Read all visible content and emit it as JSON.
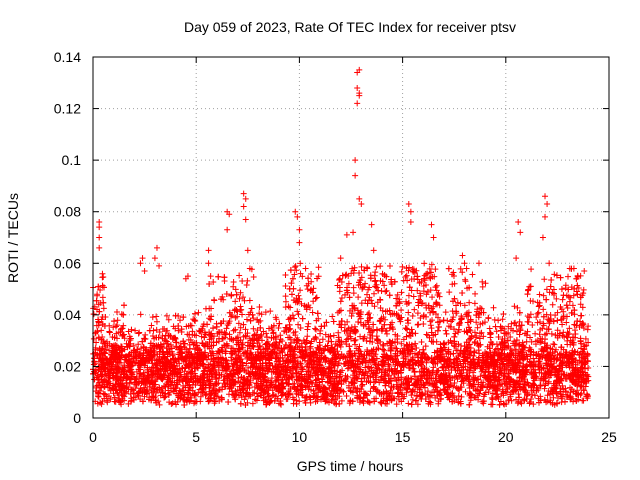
{
  "chart_data": {
    "type": "scatter",
    "title": "Day 059 of 2023, Rate Of TEC Index for receiver ptsv",
    "xlabel": "GPS time / hours",
    "ylabel": "ROTI / TECUs",
    "xlim": [
      0,
      25
    ],
    "ylim": [
      0,
      0.14
    ],
    "x_ticks": [
      0,
      5,
      10,
      15,
      20,
      25
    ],
    "x_tick_labels": [
      "0",
      "5",
      "10",
      "15",
      "20",
      "25"
    ],
    "y_ticks": [
      0,
      0.02,
      0.04,
      0.06,
      0.08,
      0.1,
      0.12,
      0.14
    ],
    "y_tick_labels": [
      "0",
      "0.02",
      "0.04",
      "0.06",
      "0.08",
      "0.1",
      "0.12",
      "0.14"
    ],
    "grid": true,
    "marker": "+",
    "series": [
      {
        "color": "#ff0000",
        "x_range": [
          0,
          24
        ],
        "baseline_typical": [
          0.005,
          0.025
        ],
        "notable_points": [
          {
            "x": 0.3,
            "y": 0.076
          },
          {
            "x": 0.3,
            "y": 0.074
          },
          {
            "x": 0.3,
            "y": 0.07
          },
          {
            "x": 0.3,
            "y": 0.066
          },
          {
            "x": 0.2,
            "y": 0.048
          },
          {
            "x": 2.4,
            "y": 0.062
          },
          {
            "x": 2.3,
            "y": 0.06
          },
          {
            "x": 2.5,
            "y": 0.057
          },
          {
            "x": 3.1,
            "y": 0.066
          },
          {
            "x": 3.0,
            "y": 0.062
          },
          {
            "x": 3.2,
            "y": 0.059
          },
          {
            "x": 4.6,
            "y": 0.055
          },
          {
            "x": 4.5,
            "y": 0.054
          },
          {
            "x": 5.6,
            "y": 0.065
          },
          {
            "x": 5.6,
            "y": 0.06
          },
          {
            "x": 5.7,
            "y": 0.055
          },
          {
            "x": 6.5,
            "y": 0.08
          },
          {
            "x": 6.6,
            "y": 0.079
          },
          {
            "x": 6.5,
            "y": 0.073
          },
          {
            "x": 7.3,
            "y": 0.087
          },
          {
            "x": 7.4,
            "y": 0.085
          },
          {
            "x": 7.3,
            "y": 0.082
          },
          {
            "x": 7.4,
            "y": 0.077
          },
          {
            "x": 7.5,
            "y": 0.065
          },
          {
            "x": 7.6,
            "y": 0.058
          },
          {
            "x": 9.8,
            "y": 0.08
          },
          {
            "x": 9.9,
            "y": 0.078
          },
          {
            "x": 10.0,
            "y": 0.073
          },
          {
            "x": 10.0,
            "y": 0.068
          },
          {
            "x": 10.3,
            "y": 0.058
          },
          {
            "x": 12.0,
            "y": 0.062
          },
          {
            "x": 12.3,
            "y": 0.071
          },
          {
            "x": 12.7,
            "y": 0.1
          },
          {
            "x": 12.7,
            "y": 0.094
          },
          {
            "x": 12.8,
            "y": 0.134
          },
          {
            "x": 12.9,
            "y": 0.135
          },
          {
            "x": 12.8,
            "y": 0.128
          },
          {
            "x": 12.9,
            "y": 0.126
          },
          {
            "x": 12.8,
            "y": 0.122
          },
          {
            "x": 12.9,
            "y": 0.125
          },
          {
            "x": 12.9,
            "y": 0.085
          },
          {
            "x": 13.0,
            "y": 0.083
          },
          {
            "x": 12.6,
            "y": 0.072
          },
          {
            "x": 13.5,
            "y": 0.075
          },
          {
            "x": 13.6,
            "y": 0.065
          },
          {
            "x": 15.3,
            "y": 0.083
          },
          {
            "x": 15.4,
            "y": 0.08
          },
          {
            "x": 15.4,
            "y": 0.076
          },
          {
            "x": 16.4,
            "y": 0.075
          },
          {
            "x": 16.5,
            "y": 0.07
          },
          {
            "x": 17.9,
            "y": 0.063
          },
          {
            "x": 18.0,
            "y": 0.06
          },
          {
            "x": 18.1,
            "y": 0.058
          },
          {
            "x": 18.7,
            "y": 0.06
          },
          {
            "x": 20.6,
            "y": 0.076
          },
          {
            "x": 20.7,
            "y": 0.072
          },
          {
            "x": 20.5,
            "y": 0.062
          },
          {
            "x": 21.9,
            "y": 0.086
          },
          {
            "x": 22.0,
            "y": 0.083
          },
          {
            "x": 21.9,
            "y": 0.078
          },
          {
            "x": 21.8,
            "y": 0.07
          },
          {
            "x": 22.1,
            "y": 0.06
          },
          {
            "x": 23.1,
            "y": 0.058
          },
          {
            "x": 23.3,
            "y": 0.058
          },
          {
            "x": 23.8,
            "y": 0.057
          }
        ]
      }
    ]
  }
}
